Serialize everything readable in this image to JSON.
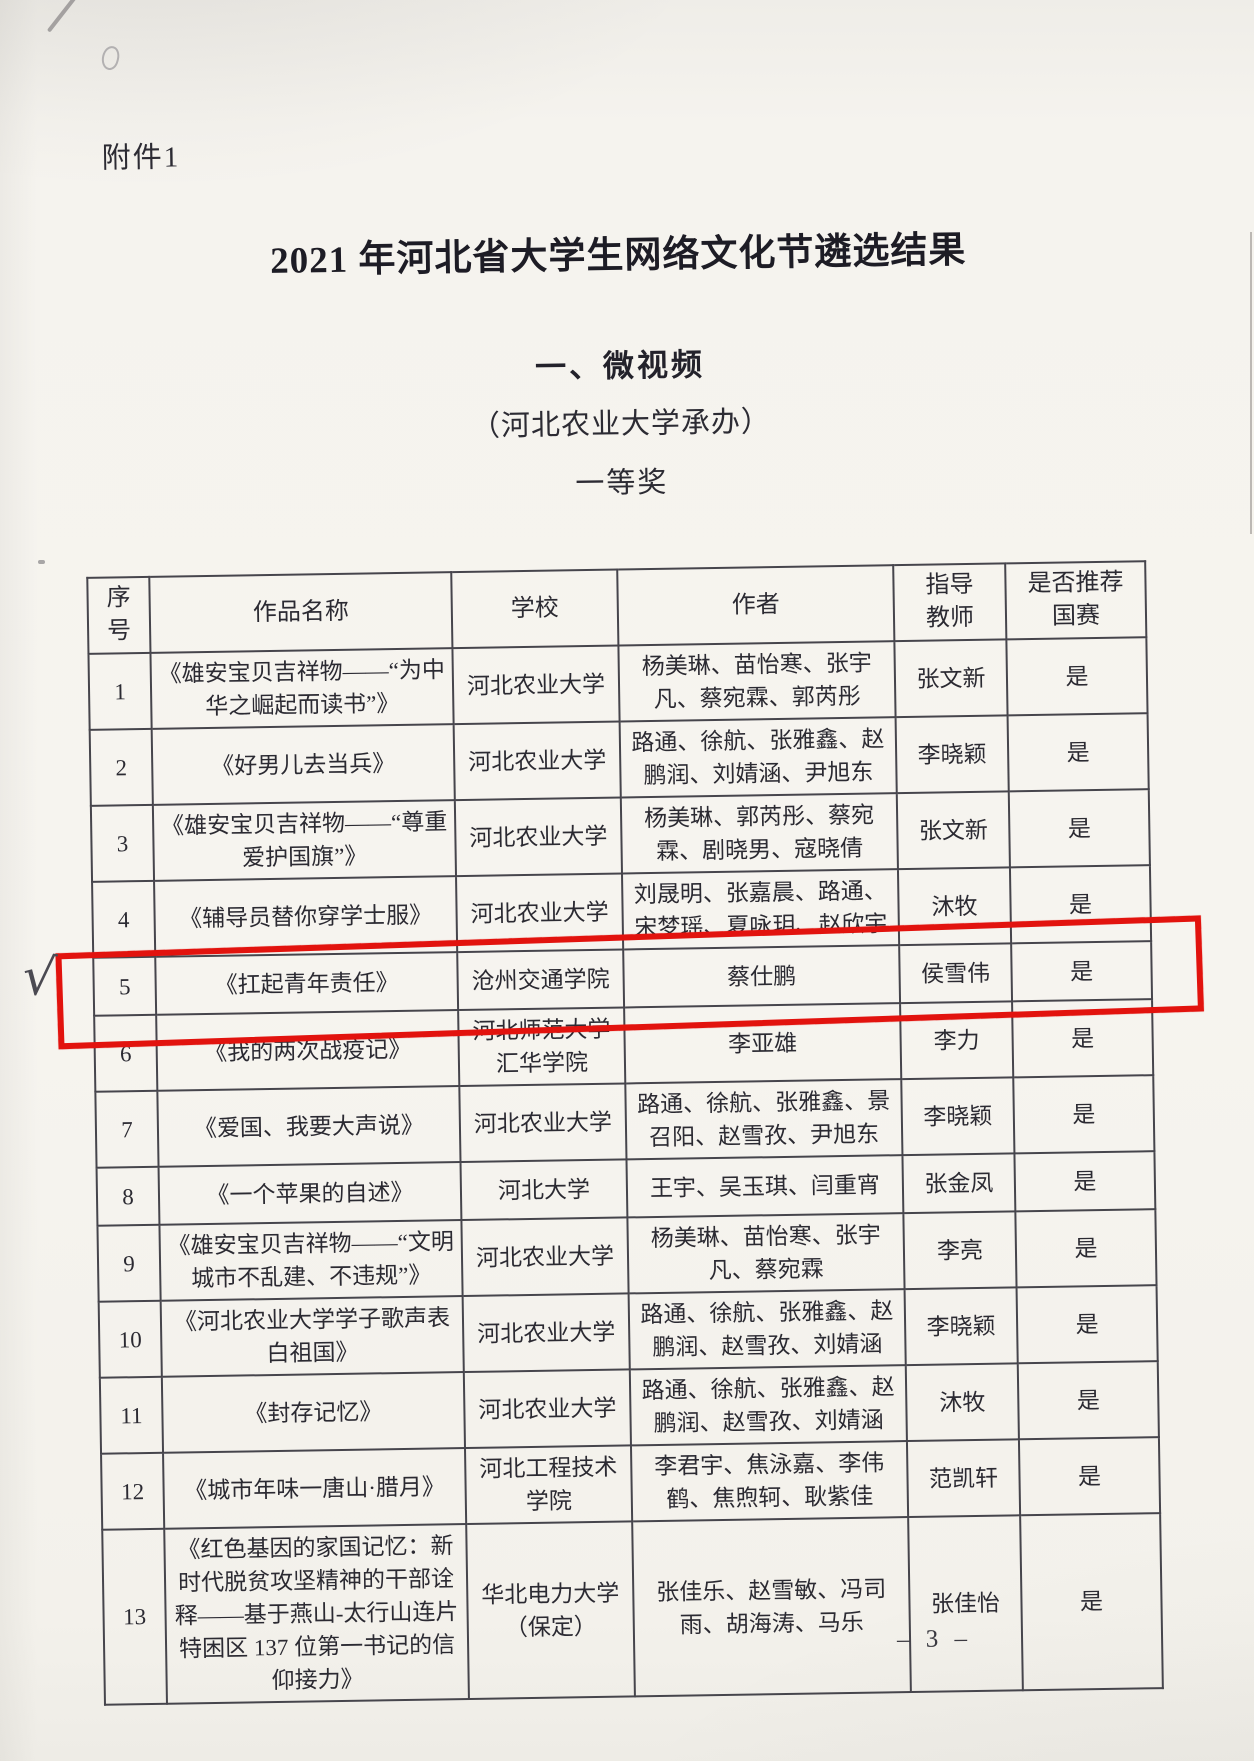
{
  "page": {
    "attachment_label": "附件1",
    "title": "2021 年河北省大学生网络文化节遴选结果",
    "section_heading": "一、微视频",
    "organizer_note": "（河北农业大学承办）",
    "award_level": "一等奖",
    "page_number": "– 3 –"
  },
  "annotations": {
    "checkmark": "√",
    "highlight_color": "#e2130e",
    "highlighted_row_no": "5"
  },
  "table": {
    "headers": [
      "序\n号",
      "作品名称",
      "学校",
      "作者",
      "指导\n教师",
      "是否推荐\n国赛"
    ],
    "highlighted_row": 5,
    "rows": [
      {
        "no": "1",
        "title": "《雄安宝贝吉祥物——“为中华之崛起而读书”》",
        "school": "河北农业大学",
        "authors": "杨美琳、苗怡寒、张宇凡、蔡宛霖、郭芮彤",
        "advisor": "张文新",
        "recommended": "是"
      },
      {
        "no": "2",
        "title": "《好男儿去当兵》",
        "school": "河北农业大学",
        "authors": "路通、徐航、张雅鑫、赵鹏润、刘婧涵、尹旭东",
        "advisor": "李晓颖",
        "recommended": "是"
      },
      {
        "no": "3",
        "title": "《雄安宝贝吉祥物——“尊重爱护国旗”》",
        "school": "河北农业大学",
        "authors": "杨美琳、郭芮彤、蔡宛霖、剧晓男、寇晓倩",
        "advisor": "张文新",
        "recommended": "是"
      },
      {
        "no": "4",
        "title": "《辅导员替你穿学士服》",
        "school": "河北农业大学",
        "authors": "刘晟明、张嘉晨、路通、宋梦瑶、夏咏玥、赵欣宇",
        "advisor": "沐牧",
        "recommended": "是"
      },
      {
        "no": "5",
        "title": "《扛起青年责任》",
        "school": "沧州交通学院",
        "authors": "蔡仕鹏",
        "advisor": "侯雪伟",
        "recommended": "是"
      },
      {
        "no": "6",
        "title": "《我的两次战疫记》",
        "school": "河北师范大学汇华学院",
        "authors": "李亚雄",
        "advisor": "李力",
        "recommended": "是"
      },
      {
        "no": "7",
        "title": "《爱国、我要大声说》",
        "school": "河北农业大学",
        "authors": "路通、徐航、张雅鑫、景召阳、赵雪孜、尹旭东",
        "advisor": "李晓颖",
        "recommended": "是"
      },
      {
        "no": "8",
        "title": "《一个苹果的自述》",
        "school": "河北大学",
        "authors": "王宇、吴玉琪、闫重宵",
        "advisor": "张金凤",
        "recommended": "是"
      },
      {
        "no": "9",
        "title": "《雄安宝贝吉祥物——“文明城市不乱建、不违规”》",
        "school": "河北农业大学",
        "authors": "杨美琳、苗怡寒、张宇凡、蔡宛霖",
        "advisor": "李亮",
        "recommended": "是"
      },
      {
        "no": "10",
        "title": "《河北农业大学学子歌声表白祖国》",
        "school": "河北农业大学",
        "authors": "路通、徐航、张雅鑫、赵鹏润、赵雪孜、刘婧涵",
        "advisor": "李晓颖",
        "recommended": "是"
      },
      {
        "no": "11",
        "title": "《封存记忆》",
        "school": "河北农业大学",
        "authors": "路通、徐航、张雅鑫、赵鹏润、赵雪孜、刘婧涵",
        "advisor": "沐牧",
        "recommended": "是"
      },
      {
        "no": "12",
        "title": "《城市年味一唐山·腊月》",
        "school": "河北工程技术学院",
        "authors": "李君宇、焦泳嘉、李伟鹤、焦煦轲、耿紫佳",
        "advisor": "范凯轩",
        "recommended": "是"
      },
      {
        "no": "13",
        "title": "《红色基因的家国记忆：新时代脱贫攻坚精神的干部诠释——基于燕山-太行山连片特困区 137 位第一书记的信仰接力》",
        "school": "华北电力大学（保定）",
        "authors": "张佳乐、赵雪敏、冯司雨、胡海涛、马乐",
        "advisor": "张佳怡",
        "recommended": "是"
      }
    ]
  }
}
